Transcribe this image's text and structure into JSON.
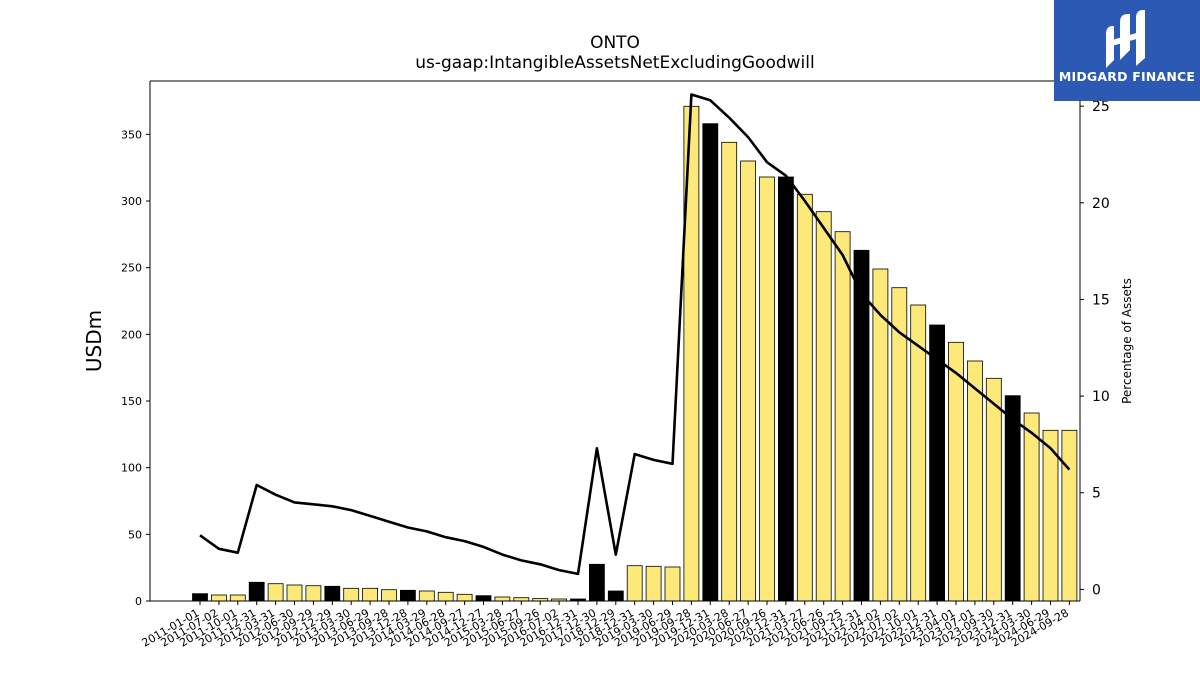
{
  "chart_data": {
    "type": "bar",
    "title": "ONTO",
    "subtitle": "us-gaap:IntangibleAssetsNetExcludingGoodwill",
    "ylabel": "USDm",
    "y2label": "Percentage of Assets",
    "ylim": [
      0,
      390
    ],
    "y2lim": [
      -0.6,
      26.3
    ],
    "yticks": [
      0,
      50,
      100,
      150,
      200,
      250,
      300,
      350
    ],
    "y2ticks": [
      0,
      5,
      10,
      15,
      20,
      25
    ],
    "categories": [
      "2011-01-01",
      "2011-07-02",
      "2011-10-01",
      "2011-12-31",
      "2012-03-31",
      "2012-06-30",
      "2012-09-29",
      "2012-12-29",
      "2013-03-30",
      "2013-06-29",
      "2013-09-28",
      "2013-12-28",
      "2014-03-29",
      "2014-06-28",
      "2014-09-27",
      "2014-12-27",
      "2015-03-28",
      "2015-06-27",
      "2015-09-26",
      "2016-07-02",
      "2016-12-31",
      "2017-12-30",
      "2018-12-29",
      "2018-12-31",
      "2019-03-30",
      "2019-06-29",
      "2019-09-28",
      "2019-12-31",
      "2020-03-28",
      "2020-06-27",
      "2020-09-26",
      "2020-12-31",
      "2021-03-27",
      "2021-06-26",
      "2021-09-25",
      "2021-12-31",
      "2022-04-02",
      "2022-07-02",
      "2022-10-01",
      "2022-12-31",
      "2023-04-01",
      "2023-07-01",
      "2023-09-30",
      "2023-12-31",
      "2024-03-30",
      "2024-06-29",
      "2024-09-28"
    ],
    "series": [
      {
        "type": "bar",
        "values": [
          5.5,
          4.5,
          4.5,
          14,
          13,
          12,
          11.5,
          11,
          9.5,
          9.5,
          8.5,
          8,
          7.5,
          6.5,
          5,
          4,
          3,
          2.5,
          1.8,
          1.5,
          1.5,
          27.5,
          7.5,
          26.5,
          26,
          25.5,
          371,
          358,
          344,
          330,
          318,
          318,
          305,
          292,
          277,
          263,
          249,
          235,
          222,
          207,
          194,
          180,
          167,
          154,
          141,
          128,
          128
        ],
        "year_end": [
          true,
          false,
          false,
          true,
          false,
          false,
          false,
          true,
          false,
          false,
          false,
          true,
          false,
          false,
          false,
          true,
          false,
          false,
          false,
          false,
          true,
          true,
          true,
          false,
          false,
          false,
          false,
          true,
          false,
          false,
          false,
          true,
          false,
          false,
          false,
          true,
          false,
          false,
          false,
          true,
          false,
          false,
          false,
          true,
          false,
          false,
          false
        ]
      },
      {
        "type": "line",
        "axis": "right",
        "values": [
          2.8,
          2.1,
          1.9,
          5.4,
          4.9,
          4.5,
          4.4,
          4.3,
          4.1,
          3.8,
          3.5,
          3.2,
          3.0,
          2.7,
          2.5,
          2.2,
          1.8,
          1.5,
          1.3,
          1.0,
          0.8,
          7.3,
          1.8,
          7.0,
          6.7,
          6.5,
          25.6,
          25.3,
          24.4,
          23.4,
          22.1,
          21.4,
          20.1,
          18.7,
          17.3,
          15.3,
          14.2,
          13.3,
          12.6,
          11.9,
          11.2,
          10.4,
          9.6,
          8.8,
          8.1,
          7.3,
          6.2
        ]
      }
    ],
    "colors": {
      "year_end_bar": "#000000",
      "quarter_bar": "#fde97a",
      "bar_edge": "#000000",
      "line": "#000000"
    }
  },
  "logo": {
    "text": "MIDGARD FINANCE",
    "background": "#2b59b4"
  }
}
